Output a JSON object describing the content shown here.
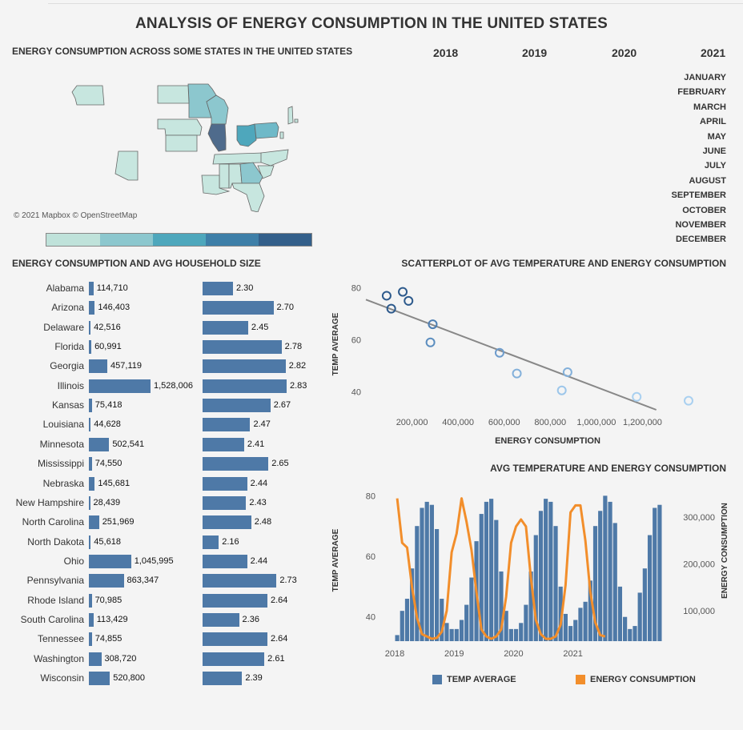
{
  "title": "ANALYSIS OF ENERGY CONSUMPTION IN THE UNITED STATES",
  "map": {
    "title": "ENERGY CONSUMPTION ACROSS SOME STATES IN THE UNITED STATES",
    "attribution": "© 2021 Mapbox © OpenStreetMap",
    "legend_colors": [
      "#bfe2da",
      "#8cc7ce",
      "#4ea7bc",
      "#3e7fa8",
      "#335f8a"
    ]
  },
  "years": [
    "2018",
    "2019",
    "2020",
    "2021"
  ],
  "months": [
    "JANUARY",
    "FEBRUARY",
    "MARCH",
    "APRIL",
    "MAY",
    "JUNE",
    "JULY",
    "AUGUST",
    "SEPTEMBER",
    "OCTOBER",
    "NOVEMBER",
    "DECEMBER"
  ],
  "bars_title": "ENERGY CONSUMPTION AND AVG HOUSEHOLD SIZE",
  "scatter_title": "SCATTERPLOT OF AVG TEMPERATURE AND ENERGY CONSUMPTION",
  "combo_title": "AVG TEMPERATURE AND ENERGY CONSUMPTION",
  "chart_data": [
    {
      "type": "bar",
      "title": "ENERGY CONSUMPTION AND AVG HOUSEHOLD SIZE",
      "categories": [
        "Alabama",
        "Arizona",
        "Delaware",
        "Florida",
        "Georgia",
        "Illinois",
        "Kansas",
        "Louisiana",
        "Minnesota",
        "Mississippi",
        "Nebraska",
        "New Hampshire",
        "North Carolina",
        "North Dakota",
        "Ohio",
        "Pennsylvania",
        "Rhode Island",
        "South Carolina",
        "Tennessee",
        "Washington",
        "Wisconsin"
      ],
      "series": [
        {
          "name": "Energy Consumption",
          "values": [
            114710,
            146403,
            42516,
            60991,
            457119,
            1528006,
            75418,
            44628,
            502541,
            74550,
            145681,
            28439,
            251969,
            45618,
            1045995,
            863347,
            70985,
            113429,
            74855,
            308720,
            520800
          ],
          "labels": [
            "114,710",
            "146,403",
            "42,516",
            "60,991",
            "457,119",
            "1,528,006",
            "75,418",
            "44,628",
            "502,541",
            "74,550",
            "145,681",
            "28,439",
            "251,969",
            "45,618",
            "1,045,995",
            "863,347",
            "70,985",
            "113,429",
            "74,855",
            "308,720",
            "520,800"
          ]
        },
        {
          "name": "Avg Household Size",
          "values": [
            2.3,
            2.7,
            2.45,
            2.78,
            2.82,
            2.83,
            2.67,
            2.47,
            2.41,
            2.65,
            2.44,
            2.43,
            2.48,
            2.16,
            2.44,
            2.73,
            2.64,
            2.36,
            2.64,
            2.61,
            2.39
          ],
          "labels": [
            "2.30",
            "2.70",
            "2.45",
            "2.78",
            "2.82",
            "2.83",
            "2.67",
            "2.47",
            "2.41",
            "2.65",
            "2.44",
            "2.43",
            "2.48",
            "2.16",
            "2.44",
            "2.73",
            "2.64",
            "2.36",
            "2.64",
            "2.61",
            "2.39"
          ]
        }
      ]
    },
    {
      "type": "scatter",
      "title": "SCATTERPLOT OF AVG TEMPERATURE AND ENERGY CONSUMPTION",
      "xlabel": "ENERGY CONSUMPTION",
      "ylabel": "TEMP AVERAGE",
      "xlim": [
        0,
        1400000
      ],
      "ylim": [
        33,
        83
      ],
      "xticks": [
        200000,
        400000,
        600000,
        800000,
        1000000,
        1200000
      ],
      "xtick_labels": [
        "200,000",
        "400,000",
        "600,000",
        "800,000",
        "1,000,000",
        "1,200,000"
      ],
      "yticks": [
        40,
        60,
        80
      ],
      "yticks_labels": [
        "40",
        "60",
        "80"
      ],
      "points": [
        {
          "x": 90000,
          "y": 77,
          "shade": "#2d5a8c"
        },
        {
          "x": 160000,
          "y": 78.5,
          "shade": "#2d5a8c"
        },
        {
          "x": 185000,
          "y": 75,
          "shade": "#2d5a8c"
        },
        {
          "x": 110000,
          "y": 72,
          "shade": "#2d5a8c"
        },
        {
          "x": 290000,
          "y": 66,
          "shade": "#4e7fb3"
        },
        {
          "x": 280000,
          "y": 59,
          "shade": "#5b8dbf"
        },
        {
          "x": 580000,
          "y": 55,
          "shade": "#6e9ccc"
        },
        {
          "x": 655000,
          "y": 47,
          "shade": "#83b0da"
        },
        {
          "x": 875000,
          "y": 47.5,
          "shade": "#83b0da"
        },
        {
          "x": 850000,
          "y": 40.5,
          "shade": "#9cc6ea"
        },
        {
          "x": 1175000,
          "y": 38,
          "shade": "#a9d0f0"
        },
        {
          "x": 1400000,
          "y": 36.5,
          "shade": "#a9d0f0"
        }
      ],
      "trend": {
        "x0": 0,
        "y0": 75.5,
        "x1": 1260000,
        "y1": 33
      }
    },
    {
      "type": "bar",
      "title": "AVG TEMPERATURE AND ENERGY CONSUMPTION",
      "xlabel": "",
      "ylabel": "TEMP AVERAGE",
      "y2label": "ENERGY CONSUMPTION",
      "ylim": [
        32,
        83
      ],
      "y2lim": [
        35000,
        365000
      ],
      "x_ticks": [
        "2018",
        "2019",
        "2020",
        "2021"
      ],
      "yticks": [
        40,
        60,
        80
      ],
      "y2ticks": [
        100000,
        200000,
        300000
      ],
      "y2tick_labels": [
        "100,000",
        "200,000",
        "300,000"
      ],
      "series": [
        {
          "name": "TEMP AVERAGE",
          "kind": "bar",
          "color": "#4e79a7",
          "values": [
            34,
            42,
            46,
            56,
            70,
            76,
            78,
            77,
            69,
            46,
            38,
            36,
            36,
            39,
            44,
            53,
            65,
            74,
            78,
            79,
            72,
            55,
            42,
            36,
            36,
            38,
            44,
            55,
            67,
            75,
            79,
            78,
            70,
            50,
            41,
            37,
            39,
            43,
            45,
            52,
            70,
            75,
            80,
            78,
            71,
            50,
            40,
            36,
            37,
            48,
            56,
            67,
            76,
            77
          ]
        },
        {
          "name": "ENERGY CONSUMPTION",
          "kind": "line",
          "color": "#f28e2b",
          "values": [
            340000,
            245000,
            235000,
            150000,
            85000,
            50000,
            45000,
            40000,
            42000,
            55000,
            100000,
            225000,
            265000,
            340000,
            290000,
            230000,
            140000,
            60000,
            45000,
            40000,
            45000,
            60000,
            130000,
            245000,
            280000,
            295000,
            280000,
            170000,
            80000,
            50000,
            40000,
            40000,
            45000,
            70000,
            155000,
            310000,
            325000,
            325000,
            250000,
            140000,
            75000,
            48000,
            45000
          ]
        }
      ]
    }
  ]
}
